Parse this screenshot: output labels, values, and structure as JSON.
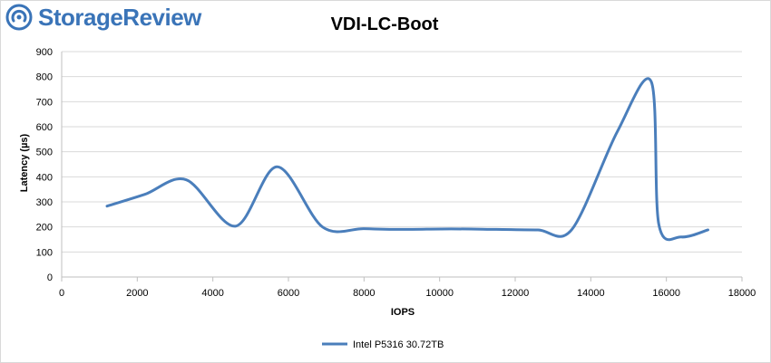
{
  "logo": {
    "text": "StorageReview",
    "icon": "storagereview-logo-icon",
    "color": "#3a74b8"
  },
  "chart_data": {
    "type": "line",
    "title": "VDI-LC-Boot",
    "xlabel": "IOPS",
    "ylabel": "Latency (µs)",
    "xlim": [
      0,
      18000
    ],
    "ylim": [
      0,
      900
    ],
    "xticks": [
      0,
      2000,
      4000,
      6000,
      8000,
      10000,
      12000,
      14000,
      16000,
      18000
    ],
    "yticks": [
      0,
      100,
      200,
      300,
      400,
      500,
      600,
      700,
      800,
      900
    ],
    "grid": "horizontal",
    "legend_position": "bottom",
    "series": [
      {
        "name": "Intel P5316 30.72TB",
        "color": "#4a7ebb",
        "x": [
          1200,
          2200,
          3300,
          4600,
          5700,
          6900,
          8000,
          9000,
          10300,
          11500,
          12600,
          13500,
          14700,
          15600,
          15800,
          16400,
          17100
        ],
        "y": [
          283,
          330,
          388,
          203,
          440,
          200,
          193,
          190,
          192,
          190,
          188,
          190,
          580,
          780,
          210,
          160,
          188
        ]
      }
    ]
  }
}
